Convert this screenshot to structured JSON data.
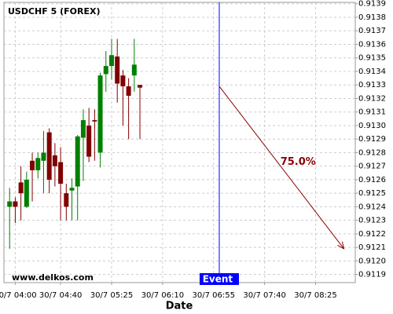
{
  "chart_data": {
    "type": "candlestick",
    "title": "USDCHF 5 (FOREX)",
    "xlabel": "Date",
    "watermark": "www.delkos.com",
    "up_color": "#008000",
    "down_color": "#800000",
    "grid": true,
    "xlim": [
      "30/7 03:50",
      "30/7 09:00"
    ],
    "ylim": [
      0.91184,
      0.91391
    ],
    "xticks": [
      "30/7 04:00",
      "30/7 04:40",
      "30/7 05:25",
      "30/7 06:10",
      "30/7 06:55",
      "30/7 07:40",
      "30/7 08:25"
    ],
    "yticks": [
      0.9119,
      {
        "value": 0.912,
        "label": "0.9120"
      },
      0.9121,
      0.9122,
      0.9123,
      0.9124,
      0.9125,
      0.9126,
      0.9127,
      0.9128,
      0.9129,
      {
        "value": 0.913,
        "label": "0.9130"
      },
      0.9131,
      0.9132,
      0.9133,
      0.9134,
      0.9135,
      0.9136,
      0.9137,
      0.9138,
      0.9139
    ],
    "candles": [
      {
        "x": "30/7 03:55",
        "open": 0.9124,
        "high": 0.91254,
        "low": 0.91209,
        "close": 0.91244
      },
      {
        "x": "30/7 04:00",
        "open": 0.91244,
        "high": 0.91247,
        "low": 0.91228,
        "close": 0.9124
      },
      {
        "x": "30/7 04:05",
        "open": 0.91258,
        "high": 0.9127,
        "low": 0.9123,
        "close": 0.9125
      },
      {
        "x": "30/7 04:10",
        "open": 0.9124,
        "high": 0.91266,
        "low": 0.91239,
        "close": 0.9126
      },
      {
        "x": "30/7 04:15",
        "open": 0.91274,
        "high": 0.9128,
        "low": 0.91244,
        "close": 0.91267
      },
      {
        "x": "30/7 04:20",
        "open": 0.91267,
        "high": 0.9128,
        "low": 0.91261,
        "close": 0.91276
      },
      {
        "x": "30/7 04:25",
        "open": 0.91274,
        "high": 0.91296,
        "low": 0.9125,
        "close": 0.9128
      },
      {
        "x": "30/7 04:30",
        "open": 0.91295,
        "high": 0.91298,
        "low": 0.9125,
        "close": 0.9126
      },
      {
        "x": "30/7 04:35",
        "open": 0.91278,
        "high": 0.91287,
        "low": 0.91255,
        "close": 0.9127
      },
      {
        "x": "30/7 04:40",
        "open": 0.91273,
        "high": 0.91284,
        "low": 0.9123,
        "close": 0.91257
      },
      {
        "x": "30/7 04:45",
        "open": 0.9125,
        "high": 0.91257,
        "low": 0.9123,
        "close": 0.9124
      },
      {
        "x": "30/7 04:50",
        "open": 0.91252,
        "high": 0.91261,
        "low": 0.9123,
        "close": 0.91254
      },
      {
        "x": "30/7 04:55",
        "open": 0.91255,
        "high": 0.91293,
        "low": 0.9123,
        "close": 0.91292
      },
      {
        "x": "30/7 05:00",
        "open": 0.91291,
        "high": 0.91312,
        "low": 0.91259,
        "close": 0.91304
      },
      {
        "x": "30/7 05:05",
        "open": 0.913,
        "high": 0.91313,
        "low": 0.91273,
        "close": 0.91277
      },
      {
        "x": "30/7 05:10",
        "open": 0.91304,
        "high": 0.91312,
        "low": 0.91274,
        "close": 0.91303
      },
      {
        "x": "30/7 05:15",
        "open": 0.9128,
        "high": 0.91339,
        "low": 0.91269,
        "close": 0.91337
      },
      {
        "x": "30/7 05:20",
        "open": 0.91338,
        "high": 0.91355,
        "low": 0.91325,
        "close": 0.91344
      },
      {
        "x": "30/7 05:25",
        "open": 0.91344,
        "high": 0.91364,
        "low": 0.91334,
        "close": 0.91352
      },
      {
        "x": "30/7 05:30",
        "open": 0.91351,
        "high": 0.91364,
        "low": 0.91317,
        "close": 0.91331
      },
      {
        "x": "30/7 05:35",
        "open": 0.91337,
        "high": 0.91341,
        "low": 0.913,
        "close": 0.91329
      },
      {
        "x": "30/7 05:40",
        "open": 0.91329,
        "high": 0.91335,
        "low": 0.9129,
        "close": 0.91322
      },
      {
        "x": "30/7 05:45",
        "open": 0.91337,
        "high": 0.91364,
        "low": 0.91325,
        "close": 0.91345
      },
      {
        "x": "30/7 05:50",
        "open": 0.9133,
        "high": 0.9133,
        "low": 0.9129,
        "close": 0.91328
      }
    ],
    "event": {
      "x": "30/7 07:00",
      "label": "Event",
      "color": "#0000ff"
    },
    "annotation": {
      "text": "75.0%",
      "color": "#8b0000",
      "start": {
        "x": "30/7 07:00",
        "y": 0.91329
      },
      "end": {
        "x": "30/7 08:50",
        "y": 0.91209
      }
    }
  }
}
